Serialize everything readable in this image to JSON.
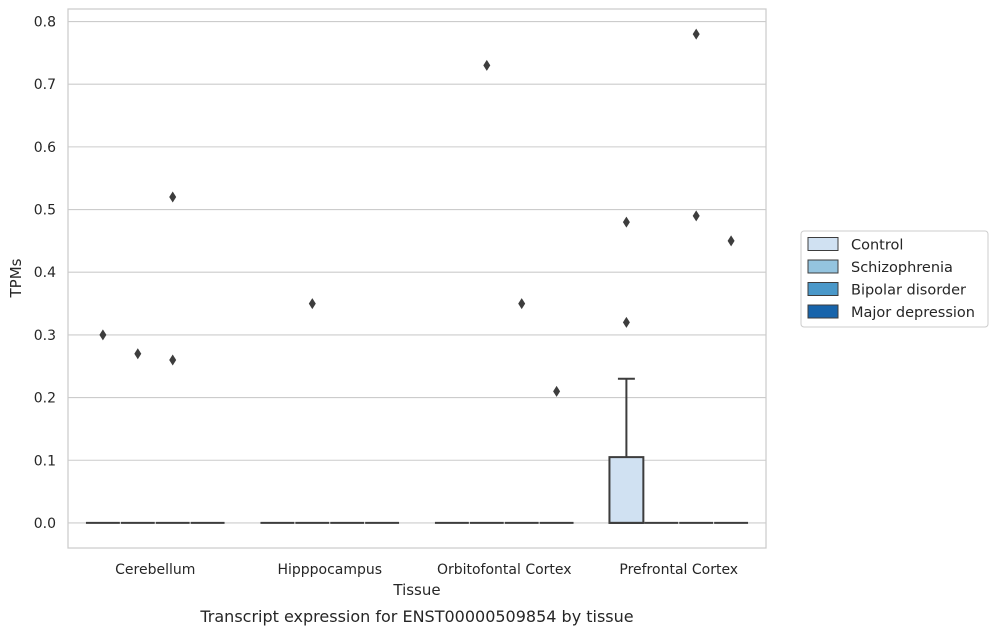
{
  "caption": "Transcript expression for ENST00000509854 by tissue",
  "chart_data": {
    "type": "box",
    "title": "",
    "xlabel": "Tissue",
    "ylabel": "TPMs",
    "ylim": [
      -0.04,
      0.82
    ],
    "yticks": [
      0.0,
      0.1,
      0.2,
      0.3,
      0.4,
      0.5,
      0.6,
      0.7,
      0.8
    ],
    "ytick_labels": [
      "0.0",
      "0.1",
      "0.2",
      "0.3",
      "0.4",
      "0.5",
      "0.6",
      "0.7",
      "0.8"
    ],
    "grid": "horizontal",
    "legend_position": "right",
    "categories": [
      "Cerebellum",
      "Hipppocampus",
      "Orbitofontal Cortex",
      "Prefrontal Cortex"
    ],
    "series": [
      {
        "name": "Control",
        "color": "#d0e1f2",
        "boxes": [
          {
            "category": "Cerebellum",
            "q1": 0.0,
            "median": 0.0,
            "q3": 0.0,
            "whisker_low": 0.0,
            "whisker_high": 0.0,
            "outliers": [
              0.3
            ]
          },
          {
            "category": "Hipppocampus",
            "q1": 0.0,
            "median": 0.0,
            "q3": 0.0,
            "whisker_low": 0.0,
            "whisker_high": 0.0,
            "outliers": []
          },
          {
            "category": "Orbitofontal Cortex",
            "q1": 0.0,
            "median": 0.0,
            "q3": 0.0,
            "whisker_low": 0.0,
            "whisker_high": 0.0,
            "outliers": []
          },
          {
            "category": "Prefrontal Cortex",
            "q1": 0.0,
            "median": 0.0,
            "q3": 0.105,
            "whisker_low": 0.0,
            "whisker_high": 0.23,
            "outliers": [
              0.48,
              0.32
            ]
          }
        ]
      },
      {
        "name": "Schizophrenia",
        "color": "#94c4df",
        "boxes": [
          {
            "category": "Cerebellum",
            "q1": 0.0,
            "median": 0.0,
            "q3": 0.0,
            "whisker_low": 0.0,
            "whisker_high": 0.0,
            "outliers": [
              0.27
            ]
          },
          {
            "category": "Hipppocampus",
            "q1": 0.0,
            "median": 0.0,
            "q3": 0.0,
            "whisker_low": 0.0,
            "whisker_high": 0.0,
            "outliers": [
              0.35
            ]
          },
          {
            "category": "Orbitofontal Cortex",
            "q1": 0.0,
            "median": 0.0,
            "q3": 0.0,
            "whisker_low": 0.0,
            "whisker_high": 0.0,
            "outliers": [
              0.73
            ]
          },
          {
            "category": "Prefrontal Cortex",
            "q1": 0.0,
            "median": 0.0,
            "q3": 0.0,
            "whisker_low": 0.0,
            "whisker_high": 0.0,
            "outliers": []
          }
        ]
      },
      {
        "name": "Bipolar disorder",
        "color": "#4a98c9",
        "boxes": [
          {
            "category": "Cerebellum",
            "q1": 0.0,
            "median": 0.0,
            "q3": 0.0,
            "whisker_low": 0.0,
            "whisker_high": 0.0,
            "outliers": [
              0.52,
              0.26
            ]
          },
          {
            "category": "Hipppocampus",
            "q1": 0.0,
            "median": 0.0,
            "q3": 0.0,
            "whisker_low": 0.0,
            "whisker_high": 0.0,
            "outliers": []
          },
          {
            "category": "Orbitofontal Cortex",
            "q1": 0.0,
            "median": 0.0,
            "q3": 0.0,
            "whisker_low": 0.0,
            "whisker_high": 0.0,
            "outliers": [
              0.35
            ]
          },
          {
            "category": "Prefrontal Cortex",
            "q1": 0.0,
            "median": 0.0,
            "q3": 0.0,
            "whisker_low": 0.0,
            "whisker_high": 0.0,
            "outliers": [
              0.78,
              0.49
            ]
          }
        ]
      },
      {
        "name": "Major depression",
        "color": "#1764ab",
        "boxes": [
          {
            "category": "Cerebellum",
            "q1": 0.0,
            "median": 0.0,
            "q3": 0.0,
            "whisker_low": 0.0,
            "whisker_high": 0.0,
            "outliers": []
          },
          {
            "category": "Hipppocampus",
            "q1": 0.0,
            "median": 0.0,
            "q3": 0.0,
            "whisker_low": 0.0,
            "whisker_high": 0.0,
            "outliers": []
          },
          {
            "category": "Orbitofontal Cortex",
            "q1": 0.0,
            "median": 0.0,
            "q3": 0.0,
            "whisker_low": 0.0,
            "whisker_high": 0.0,
            "outliers": [
              0.21
            ]
          },
          {
            "category": "Prefrontal Cortex",
            "q1": 0.0,
            "median": 0.0,
            "q3": 0.0,
            "whisker_low": 0.0,
            "whisker_high": 0.0,
            "outliers": [
              0.45
            ]
          }
        ]
      }
    ]
  }
}
